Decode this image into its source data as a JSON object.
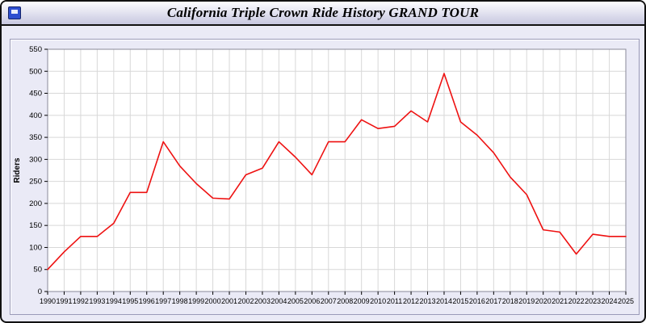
{
  "window": {
    "title": "California Triple Crown Ride History GRAND TOUR"
  },
  "chart_data": {
    "type": "line",
    "title": "California Triple Crown Ride History GRAND TOUR",
    "xlabel": "",
    "ylabel": "Riders",
    "ylim": [
      0,
      550
    ],
    "ytick_step": 50,
    "grid": true,
    "legend_position": "none",
    "line_color": "#ee1111",
    "plot_bg": "#ffffff",
    "grid_color": "#d8d8d8",
    "categories": [
      1990,
      1991,
      1992,
      1993,
      1994,
      1995,
      1996,
      1997,
      1998,
      1999,
      2000,
      2001,
      2002,
      2003,
      2004,
      2005,
      2006,
      2007,
      2008,
      2009,
      2010,
      2011,
      2012,
      2013,
      2014,
      2015,
      2016,
      2017,
      2018,
      2019,
      2020,
      2021,
      2022,
      2023,
      2024,
      2025
    ],
    "series": [
      {
        "name": "Riders",
        "values": [
          50,
          90,
          125,
          125,
          155,
          225,
          225,
          340,
          285,
          245,
          212,
          210,
          265,
          280,
          340,
          305,
          265,
          340,
          340,
          390,
          370,
          375,
          410,
          385,
          495,
          385,
          355,
          315,
          260,
          220,
          140,
          135,
          85,
          130,
          125,
          125
        ]
      }
    ]
  }
}
